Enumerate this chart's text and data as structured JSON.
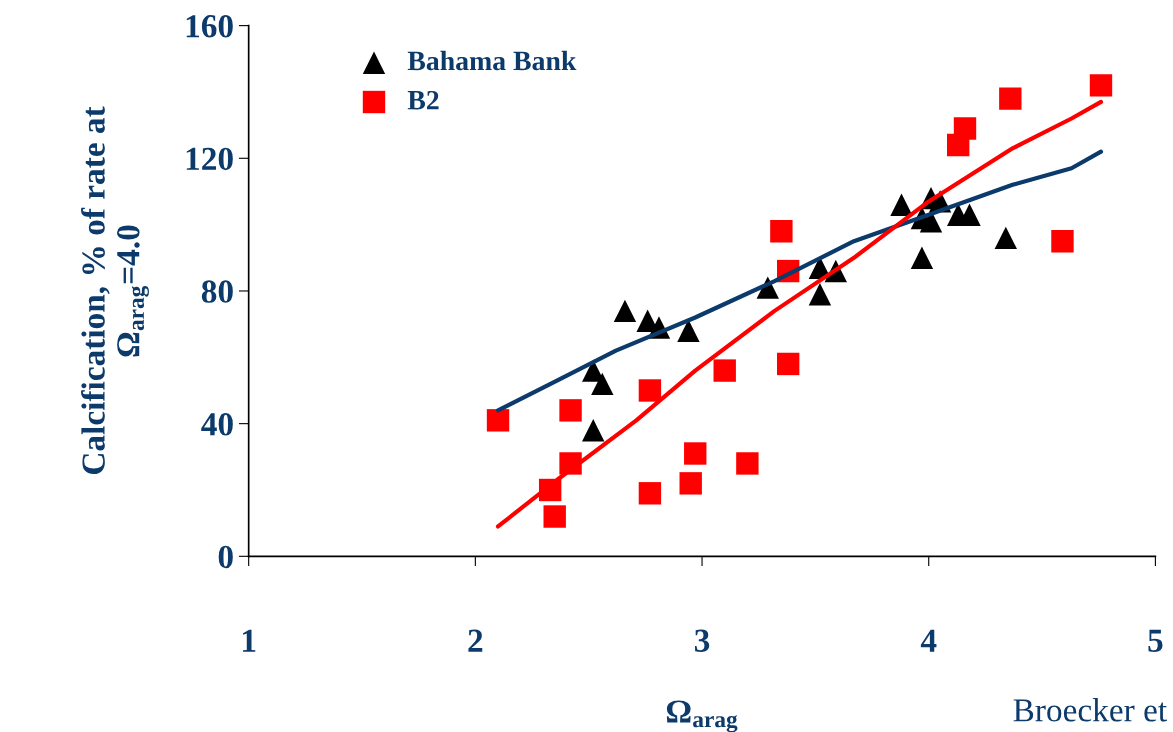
{
  "chart_data": {
    "type": "scatter",
    "xlabel": "Ω$_{arag}$",
    "ylabel": "Calcification, % of rate at\nΩ$_{arag}$=4.0",
    "annotations": [
      "Broecker et"
    ],
    "xlim": [
      1,
      5
    ],
    "xticks": [
      1,
      2,
      3,
      4,
      5
    ],
    "ylim": [
      0,
      160
    ],
    "yticks": [
      0,
      40,
      80,
      120,
      160
    ],
    "grid": false,
    "legend": "top left",
    "series": [
      {
        "name": "Bahama Bank",
        "marker": "triangle",
        "color": "#000000",
        "x": [
          2.66,
          2.76,
          2.81,
          2.94,
          2.52,
          2.56,
          2.52,
          3.29,
          3.52,
          3.52,
          3.59,
          3.88,
          3.97,
          4.01,
          4.05,
          3.97,
          4.01,
          4.13,
          4.18,
          4.34
        ],
        "values": [
          74,
          71,
          69,
          68,
          56,
          52,
          38,
          81,
          87,
          79,
          86,
          106,
          90,
          108,
          107,
          102,
          101,
          103,
          103,
          96
        ]
      },
      {
        "name": "B2",
        "marker": "square",
        "color": "#ff0000",
        "x": [
          2.1,
          2.42,
          2.33,
          2.35,
          2.42,
          2.77,
          2.77,
          2.95,
          2.97,
          3.1,
          3.2,
          3.35,
          3.38,
          3.38,
          4.13,
          4.16,
          4.36,
          4.59,
          4.76
        ],
        "values": [
          41,
          44,
          20,
          12,
          28,
          19,
          50,
          22,
          31,
          56,
          28,
          98,
          58,
          86,
          124,
          129,
          138,
          95,
          142
        ]
      },
      {
        "type": "line",
        "color": "#0b3a6b",
        "line_style": "solid",
        "x": [
          2.1,
          2.36,
          2.62,
          2.97,
          3.32,
          3.67,
          4.0,
          4.37,
          4.63,
          4.76
        ],
        "values": [
          44,
          53,
          62,
          72,
          83,
          95,
          103,
          112,
          117,
          122
        ]
      },
      {
        "type": "line",
        "color": "#ff0000",
        "line_style": "solid",
        "x": [
          2.1,
          2.36,
          2.71,
          2.97,
          3.32,
          3.67,
          4.0,
          4.37,
          4.63,
          4.76
        ],
        "values": [
          9,
          23,
          41,
          56,
          74,
          90,
          107,
          123,
          132,
          137
        ]
      }
    ]
  }
}
